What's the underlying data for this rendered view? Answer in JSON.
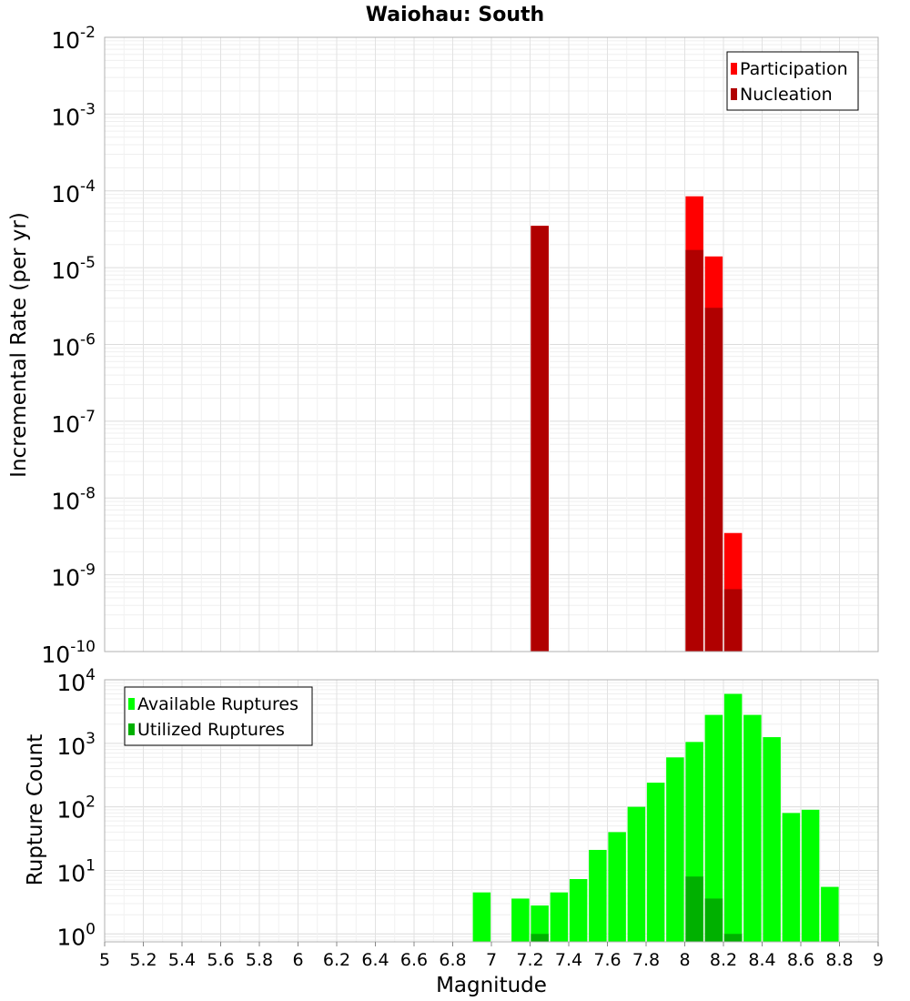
{
  "title": "Waiohau: South",
  "chart_data": [
    {
      "type": "bar",
      "yscale": "log",
      "ylabel": "Incremental Rate (per yr)",
      "xlabel": "",
      "xlim": [
        5,
        9
      ],
      "ylim": [
        1e-10,
        0.01
      ],
      "grid": true,
      "legend_position": "top-right",
      "y_ticks": [
        {
          "value": 1e-10,
          "base": "10",
          "exp": "-10"
        },
        {
          "value": 1e-09,
          "base": "10",
          "exp": "-9"
        },
        {
          "value": 1e-08,
          "base": "10",
          "exp": "-8"
        },
        {
          "value": 1e-07,
          "base": "10",
          "exp": "-7"
        },
        {
          "value": 1e-06,
          "base": "10",
          "exp": "-6"
        },
        {
          "value": 1e-05,
          "base": "10",
          "exp": "-5"
        },
        {
          "value": 0.0001,
          "base": "10",
          "exp": "-4"
        },
        {
          "value": 0.001,
          "base": "10",
          "exp": "-3"
        },
        {
          "value": 0.01,
          "base": "10",
          "exp": "-2"
        }
      ],
      "series": [
        {
          "name": "Participation",
          "color": "#ff0000",
          "x": [
            7.25,
            8.05,
            8.15,
            8.25
          ],
          "values": [
            3.5e-05,
            8.5e-05,
            1.4e-05,
            3.5e-09
          ]
        },
        {
          "name": "Nucleation",
          "color": "#b00000",
          "x": [
            7.25,
            8.05,
            8.15,
            8.25
          ],
          "values": [
            3.5e-05,
            1.7e-05,
            3e-06,
            6.5e-10
          ]
        }
      ]
    },
    {
      "type": "bar",
      "yscale": "log",
      "ylabel": "Rupture Count",
      "xlabel": "Magnitude",
      "xlim": [
        5,
        9
      ],
      "ylim": [
        0.75,
        10000
      ],
      "grid": true,
      "legend_position": "top-left",
      "y_ticks": [
        {
          "value": 1,
          "base": "10",
          "exp": "0"
        },
        {
          "value": 10,
          "base": "10",
          "exp": "1"
        },
        {
          "value": 100,
          "base": "10",
          "exp": "2"
        },
        {
          "value": 1000,
          "base": "10",
          "exp": "3"
        },
        {
          "value": 10000,
          "base": "10",
          "exp": "4"
        }
      ],
      "x_ticks": [
        "5",
        "5.2",
        "5.4",
        "5.6",
        "5.8",
        "6",
        "6.2",
        "6.4",
        "6.6",
        "6.8",
        "7",
        "7.2",
        "7.4",
        "7.6",
        "7.8",
        "8",
        "8.2",
        "8.4",
        "8.6",
        "8.8",
        "9"
      ],
      "series": [
        {
          "name": "Available Ruptures",
          "color": "#00ff00",
          "x": [
            6.95,
            7.15,
            7.25,
            7.35,
            7.45,
            7.55,
            7.65,
            7.75,
            7.85,
            7.95,
            8.05,
            8.15,
            8.25,
            8.35,
            8.45,
            8.55,
            8.65,
            8.75
          ],
          "values": [
            4.5,
            3.6,
            2.8,
            4.5,
            7.3,
            21,
            40,
            100,
            240,
            600,
            1050,
            2800,
            6000,
            2800,
            1250,
            80,
            90,
            5.5
          ]
        },
        {
          "name": "Utilized Ruptures",
          "color": "#00b000",
          "x": [
            7.25,
            8.05,
            8.15,
            8.25
          ],
          "values": [
            1,
            8,
            3.6,
            1
          ]
        }
      ]
    }
  ]
}
